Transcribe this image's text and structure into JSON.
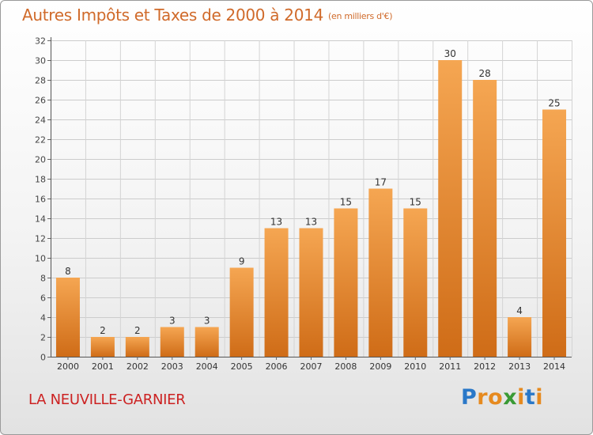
{
  "header": {
    "title": "Autres Impôts et Taxes de 2000 à 2014",
    "subtitle": "(en milliers d'€)"
  },
  "footer": {
    "commune": "LA NEUVILLE-GARNIER",
    "brand_letters": [
      "P",
      "r",
      "o",
      "x",
      "i",
      "t",
      "i"
    ]
  },
  "colors": {
    "bar_top": "#f5a652",
    "bar_bottom": "#cf6c17",
    "title": "#d06a2a",
    "commune": "#cc2222",
    "brand": [
      "#2a78c8",
      "#e68a1f",
      "#e68a1f",
      "#3a9a35",
      "#e68a1f",
      "#2a78c8",
      "#e68a1f"
    ]
  },
  "chart_data": {
    "type": "bar",
    "title": "Autres Impôts et Taxes de 2000 à 2014",
    "subtitle": "(en milliers d'€)",
    "categories": [
      "2000",
      "2001",
      "2002",
      "2003",
      "2004",
      "2005",
      "2006",
      "2007",
      "2008",
      "2009",
      "2010",
      "2011",
      "2012",
      "2013",
      "2014"
    ],
    "values": [
      8,
      2,
      2,
      3,
      3,
      9,
      13,
      13,
      15,
      17,
      15,
      30,
      28,
      4,
      25
    ],
    "ylim": [
      0,
      32
    ],
    "yticks": [
      0,
      2,
      4,
      6,
      8,
      10,
      12,
      14,
      16,
      18,
      20,
      22,
      24,
      26,
      28,
      30,
      32
    ],
    "grid": true,
    "data_labels": true
  }
}
